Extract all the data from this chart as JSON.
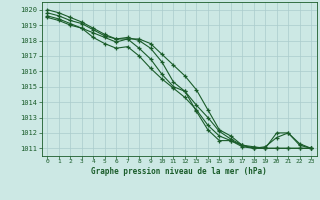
{
  "bg_color": "#cce8e4",
  "grid_color": "#aacccc",
  "line_color": "#1a5c2a",
  "title": "Graphe pression niveau de la mer (hPa)",
  "xlim": [
    -0.5,
    23.5
  ],
  "ylim": [
    1010.5,
    1020.5
  ],
  "yticks": [
    1011,
    1012,
    1013,
    1014,
    1015,
    1016,
    1017,
    1018,
    1019,
    1020
  ],
  "xticks": [
    0,
    1,
    2,
    3,
    4,
    5,
    6,
    7,
    8,
    9,
    10,
    11,
    12,
    13,
    14,
    15,
    16,
    17,
    18,
    19,
    20,
    21,
    22,
    23
  ],
  "series": [
    {
      "x": [
        0,
        1,
        2,
        3,
        4,
        5,
        6,
        7,
        8,
        9,
        10,
        11,
        12,
        13,
        14,
        15,
        16,
        17,
        18,
        19,
        20,
        21,
        22,
        23
      ],
      "y": [
        1019.5,
        1019.3,
        1019.0,
        1018.8,
        1018.5,
        1018.2,
        1017.9,
        1018.1,
        1018.1,
        1017.8,
        1017.1,
        1016.4,
        1015.7,
        1014.8,
        1013.5,
        1012.2,
        1011.8,
        1011.2,
        1011.1,
        1011.0,
        1011.0,
        1011.0,
        1011.0,
        1011.0
      ]
    },
    {
      "x": [
        0,
        1,
        2,
        3,
        4,
        5,
        6,
        7,
        8,
        9,
        10,
        11,
        12,
        13,
        14,
        15,
        16,
        17,
        18,
        19,
        20,
        21,
        22,
        23
      ],
      "y": [
        1019.8,
        1019.6,
        1019.3,
        1019.1,
        1018.7,
        1018.3,
        1018.1,
        1018.2,
        1018.0,
        1017.5,
        1016.6,
        1015.3,
        1014.7,
        1013.8,
        1013.0,
        1012.1,
        1011.6,
        1011.2,
        1011.0,
        1011.0,
        1011.0,
        1011.0,
        1011.0,
        1011.0
      ]
    },
    {
      "x": [
        0,
        1,
        2,
        3,
        4,
        5,
        6,
        7,
        8,
        9,
        10,
        11,
        12,
        13,
        14,
        15,
        16,
        17,
        18,
        19,
        20,
        21,
        22,
        23
      ],
      "y": [
        1019.6,
        1019.4,
        1019.1,
        1018.8,
        1018.2,
        1017.8,
        1017.5,
        1017.6,
        1017.0,
        1016.2,
        1015.5,
        1014.9,
        1014.3,
        1013.5,
        1012.5,
        1011.8,
        1011.5,
        1011.1,
        1011.0,
        1011.1,
        1011.7,
        1012.0,
        1011.3,
        1011.0
      ]
    },
    {
      "x": [
        0,
        1,
        2,
        3,
        4,
        5,
        6,
        7,
        8,
        9,
        10,
        11,
        12,
        13,
        14,
        15,
        16,
        17,
        18,
        19,
        20,
        21,
        22,
        23
      ],
      "y": [
        1020.0,
        1019.8,
        1019.5,
        1019.2,
        1018.8,
        1018.4,
        1018.1,
        1018.1,
        1017.5,
        1016.8,
        1015.8,
        1015.0,
        1014.7,
        1013.4,
        1012.2,
        1011.5,
        1011.5,
        1011.2,
        1011.0,
        1011.0,
        1012.0,
        1012.0,
        1011.2,
        1011.0
      ]
    }
  ]
}
